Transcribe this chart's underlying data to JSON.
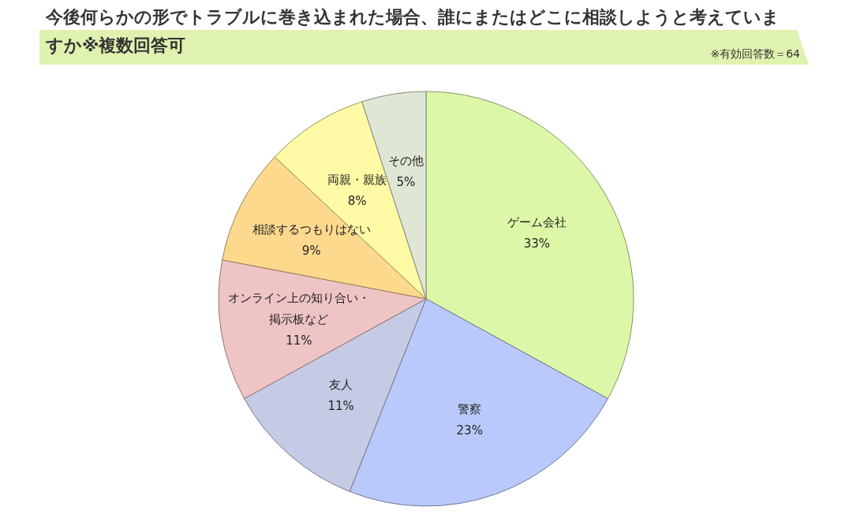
{
  "chart_data": {
    "type": "pie",
    "title": "今後何らかの形でトラブルに巻き込まれた場合、誰にまたはどこに相談しようと考えていますか※複数回答可",
    "annotations": [
      "※有効回答数＝64"
    ],
    "categories": [
      "ゲーム会社",
      "警察",
      "友人",
      "オンライン上の知り合い・掲示板など",
      "相談するつもりはない",
      "両親・親族",
      "その他"
    ],
    "values": [
      33,
      23,
      11,
      11,
      9,
      8,
      5
    ],
    "colors": [
      "#ddf7a8",
      "#b9c9fb",
      "#c5cbe4",
      "#efc4c4",
      "#fdd98e",
      "#fffaa6",
      "#dfe6d4"
    ],
    "value_labels": [
      "33%",
      "23%",
      "11%",
      "11%",
      "9%",
      "8%",
      "5%"
    ],
    "legend": false
  }
}
